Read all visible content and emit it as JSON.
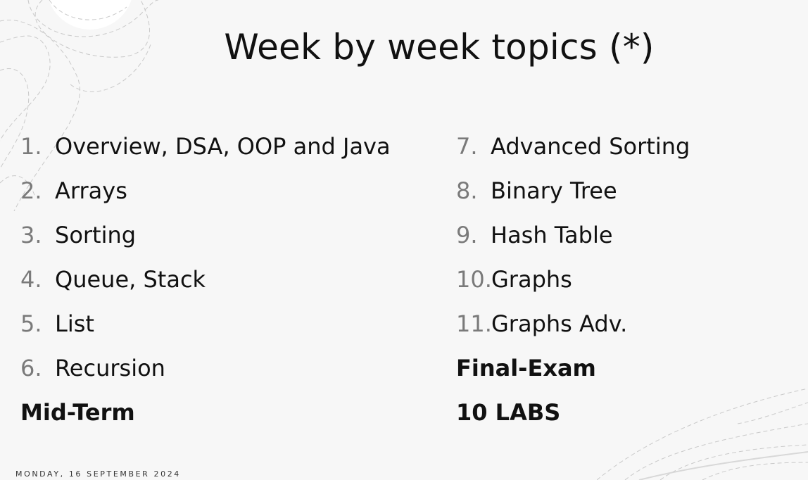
{
  "slide": {
    "title": "Week by week topics (*)",
    "left_items": [
      {
        "num": "1.",
        "text": "Overview, DSA, OOP and Java"
      },
      {
        "num": "2.",
        "text": "Arrays"
      },
      {
        "num": "3.",
        "text": "Sorting"
      },
      {
        "num": "4.",
        "text": "Queue, Stack"
      },
      {
        "num": "5.",
        "text": "List"
      },
      {
        "num": "6.",
        "text": "Recursion"
      }
    ],
    "left_bold": "Mid-Term",
    "right_items": [
      {
        "num": "7.",
        "text": "Advanced Sorting"
      },
      {
        "num": "8.",
        "text": "Binary Tree"
      },
      {
        "num": "9.",
        "text": "Hash Table"
      },
      {
        "num": "10.",
        "text": "Graphs"
      },
      {
        "num": "11.",
        "text": "Graphs Adv."
      }
    ],
    "right_bold_1": "Final-Exam",
    "right_bold_2": "10 LABS",
    "footer_date": "MONDAY, 16 SEPTEMBER 2024"
  }
}
